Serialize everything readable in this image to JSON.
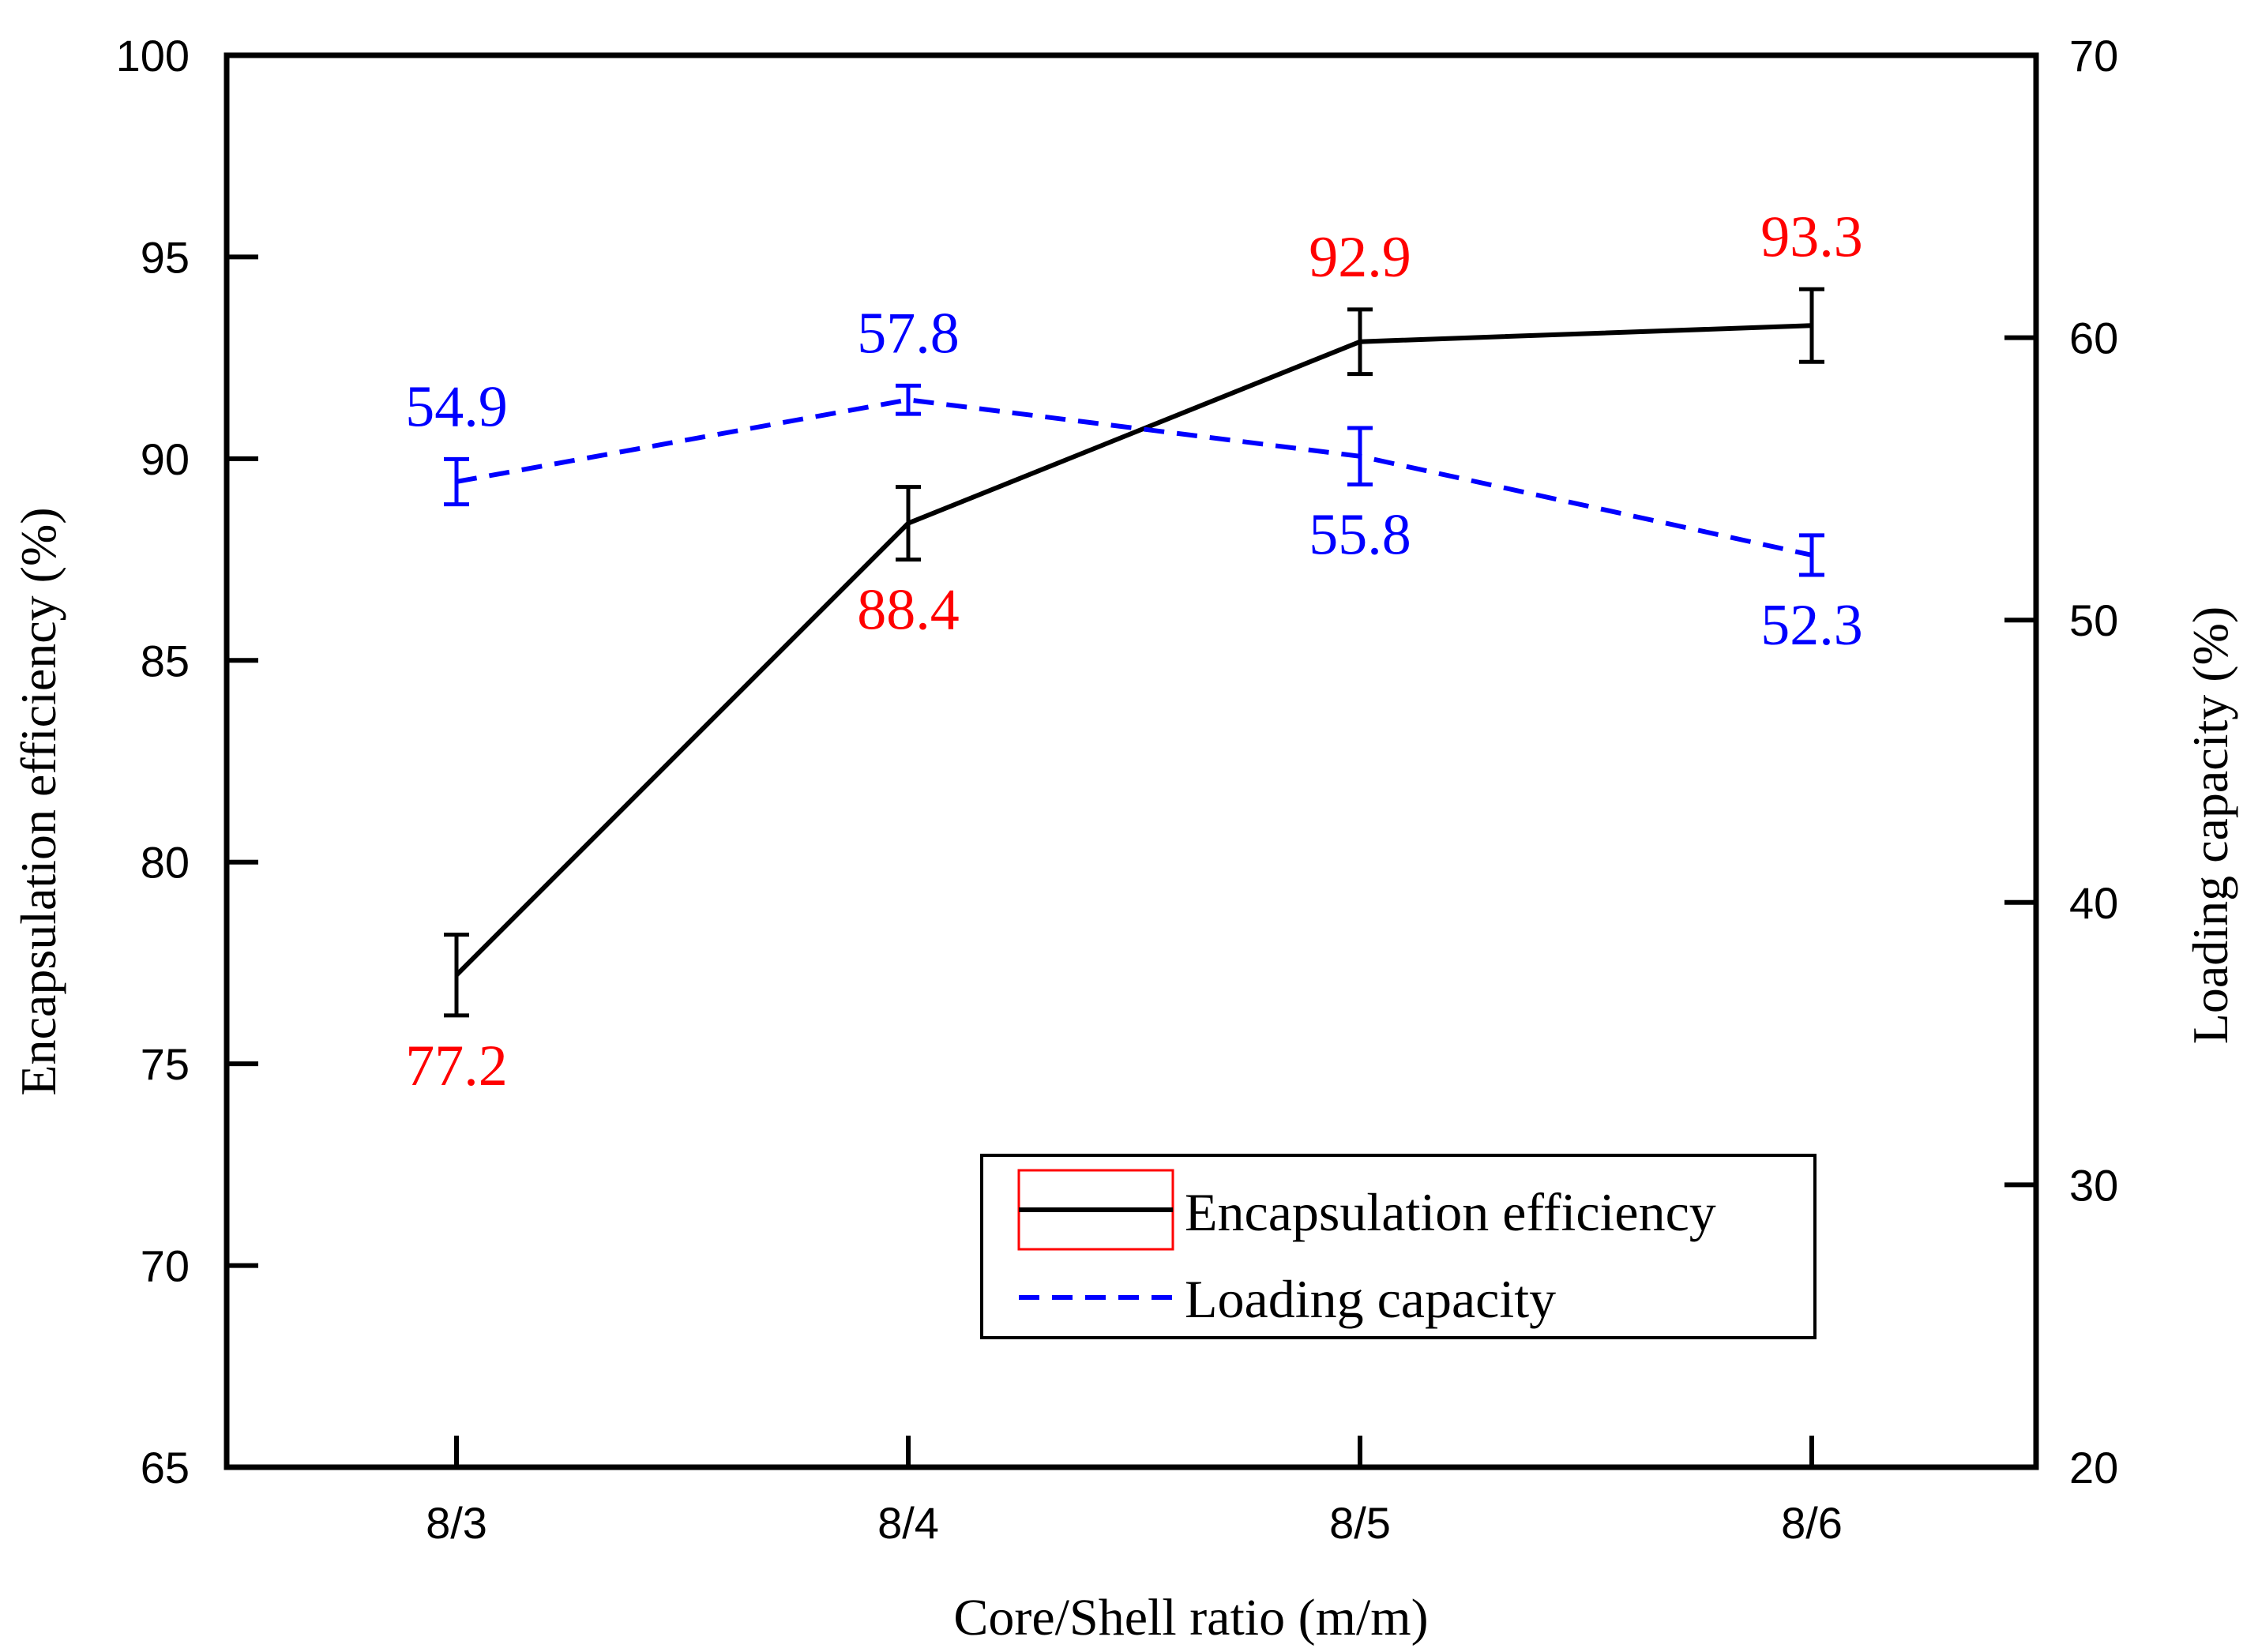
{
  "chart_data": {
    "type": "line",
    "categories": [
      "8/3",
      "8/4",
      "8/5",
      "8/6"
    ],
    "xlabel": "Core/Shell ratio (m/m)",
    "ylabel": "Encapsulation efficiency (%)",
    "y2label": "Loading capacity (%)",
    "ylim": [
      65,
      100
    ],
    "y2lim": [
      20,
      70
    ],
    "yticks": [
      "65",
      "70",
      "75",
      "80",
      "85",
      "90",
      "95",
      "100"
    ],
    "y2ticks": [
      "20",
      "30",
      "40",
      "50",
      "60",
      "70"
    ],
    "legend_position": "lower-right",
    "series": [
      {
        "name": "Encapsulation efficiency",
        "axis": "left",
        "style": "solid",
        "color": "#000000",
        "label_color": "#ff0000",
        "values": [
          77.2,
          88.4,
          92.9,
          93.3
        ],
        "errors": [
          1.0,
          0.9,
          0.8,
          0.9
        ],
        "labels": [
          "77.2",
          "88.4",
          "92.9",
          "93.3"
        ],
        "label_side": [
          "below",
          "below",
          "above",
          "above"
        ]
      },
      {
        "name": "Loading capacity",
        "axis": "right",
        "style": "dashed",
        "color": "#0000ff",
        "label_color": "#0000ff",
        "values": [
          54.9,
          57.8,
          55.8,
          52.3
        ],
        "errors": [
          0.8,
          0.5,
          1.0,
          0.7
        ],
        "labels": [
          "54.9",
          "57.8",
          "55.8",
          "52.3"
        ],
        "label_side": [
          "above",
          "above",
          "below",
          "below"
        ]
      }
    ]
  }
}
